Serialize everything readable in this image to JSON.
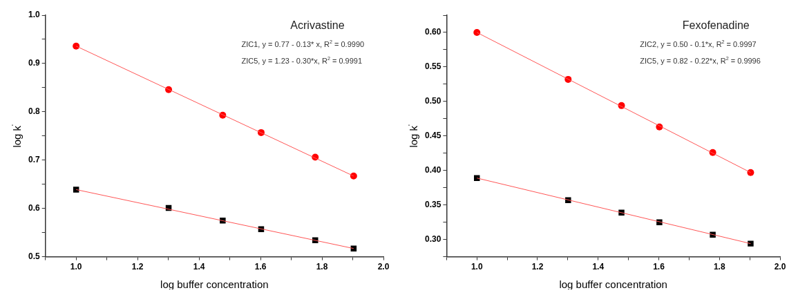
{
  "chart_data": [
    {
      "type": "scatter",
      "title": "Acrivastine",
      "xlabel": "log buffer concentration",
      "ylabel": "log k$^{'}$",
      "annotations": [
        "ZIC1, y = 0.77 - 0.13* x, R$^{2}$ = 0.9990",
        "ZIC5, y = 1.23 - 0.30*x, R$^{2}$ = 0.9991"
      ],
      "xlim": [
        0.9,
        2.0
      ],
      "ylim": [
        0.5,
        1.0
      ],
      "xticks": [
        {
          "value": 0.9,
          "label": null
        },
        {
          "value": 1,
          "label": "1.0"
        },
        {
          "value": 1.1,
          "label": null
        },
        1.2,
        {
          "value": 1.3,
          "label": null
        },
        1.4,
        {
          "value": 1.5,
          "label": null
        },
        1.6,
        {
          "value": 1.7,
          "label": null
        },
        1.8,
        {
          "value": 1.9,
          "label": null
        },
        {
          "value": 2,
          "label": "2.0"
        }
      ],
      "yticks": [
        0.5,
        {
          "value": 0.55,
          "label": null
        },
        0.6,
        {
          "value": 0.65,
          "label": null
        },
        0.7,
        {
          "value": 0.75,
          "label": null
        },
        0.8,
        {
          "value": 0.85,
          "label": null
        },
        0.9,
        {
          "value": 0.95,
          "label": null
        },
        {
          "value": 1,
          "label": "1.0"
        }
      ],
      "grid": false,
      "legend": false,
      "series": [
        {
          "type": "line",
          "color": "#ff5555",
          "marker": "none",
          "x": [
            1.0,
            1.903
          ],
          "values": [
            0.936,
            0.667
          ]
        },
        {
          "type": "line",
          "color": "#ff5555",
          "marker": "none",
          "x": [
            1.0,
            1.903
          ],
          "values": [
            0.639,
            0.517
          ]
        },
        {
          "type": "scatter",
          "color": "#ff0000",
          "marker": "circle",
          "x": [
            1.0,
            1.301,
            1.477,
            1.602,
            1.778,
            1.903
          ],
          "values": [
            0.936,
            0.846,
            0.793,
            0.757,
            0.706,
            0.667
          ]
        },
        {
          "type": "scatter",
          "color": "#000000",
          "marker": "square",
          "x": [
            1.0,
            1.301,
            1.477,
            1.602,
            1.778,
            1.903
          ],
          "values": [
            0.639,
            0.601,
            0.575,
            0.557,
            0.534,
            0.517
          ]
        }
      ]
    },
    {
      "type": "scatter",
      "title": "Fexofenadine",
      "xlabel": "log buffer concentration",
      "ylabel": "log k$^{'}$",
      "annotations": [
        "ZIC2, y = 0.50 - 0.1*x, R$^{2}$ = 0.9997",
        "ZIC5, y = 0.82 - 0.22*x, R$^{2}$ = 0.9996"
      ],
      "xlim": [
        0.9,
        2.0
      ],
      "ylim": [
        0.275,
        0.625
      ],
      "xticks": [
        {
          "value": 0.9,
          "label": null
        },
        {
          "value": 1,
          "label": "1.0"
        },
        {
          "value": 1.1,
          "label": null
        },
        1.2,
        {
          "value": 1.3,
          "label": null
        },
        1.4,
        {
          "value": 1.5,
          "label": null
        },
        1.6,
        {
          "value": 1.7,
          "label": null
        },
        1.8,
        {
          "value": 1.9,
          "label": null
        },
        {
          "value": 2,
          "label": "2.0"
        }
      ],
      "yticks": [
        {
          "value": 0.275,
          "label": null
        },
        {
          "value": 0.3,
          "label": "0.30"
        },
        {
          "value": 0.325,
          "label": null
        },
        0.35,
        {
          "value": 0.375,
          "label": null
        },
        {
          "value": 0.4,
          "label": "0.40"
        },
        {
          "value": 0.425,
          "label": null
        },
        0.45,
        {
          "value": 0.475,
          "label": null
        },
        {
          "value": 0.5,
          "label": "0.50"
        },
        {
          "value": 0.525,
          "label": null
        },
        0.55,
        {
          "value": 0.575,
          "label": null
        },
        {
          "value": 0.6,
          "label": "0.60"
        },
        {
          "value": 0.625,
          "label": null
        }
      ],
      "grid": false,
      "legend": false,
      "series": [
        {
          "type": "line",
          "color": "#ff5555",
          "marker": "none",
          "x": [
            1.0,
            1.903
          ],
          "values": [
            0.6,
            0.397
          ]
        },
        {
          "type": "line",
          "color": "#ff5555",
          "marker": "none",
          "x": [
            1.0,
            1.903
          ],
          "values": [
            0.389,
            0.294
          ]
        },
        {
          "type": "scatter",
          "color": "#ff0000",
          "marker": "circle",
          "x": [
            1.0,
            1.301,
            1.477,
            1.602,
            1.778,
            1.903
          ],
          "values": [
            0.6,
            0.532,
            0.494,
            0.463,
            0.426,
            0.397
          ]
        },
        {
          "type": "scatter",
          "color": "#000000",
          "marker": "square",
          "x": [
            1.0,
            1.301,
            1.477,
            1.602,
            1.778,
            1.903
          ],
          "values": [
            0.389,
            0.357,
            0.339,
            0.325,
            0.307,
            0.294
          ]
        }
      ]
    }
  ]
}
